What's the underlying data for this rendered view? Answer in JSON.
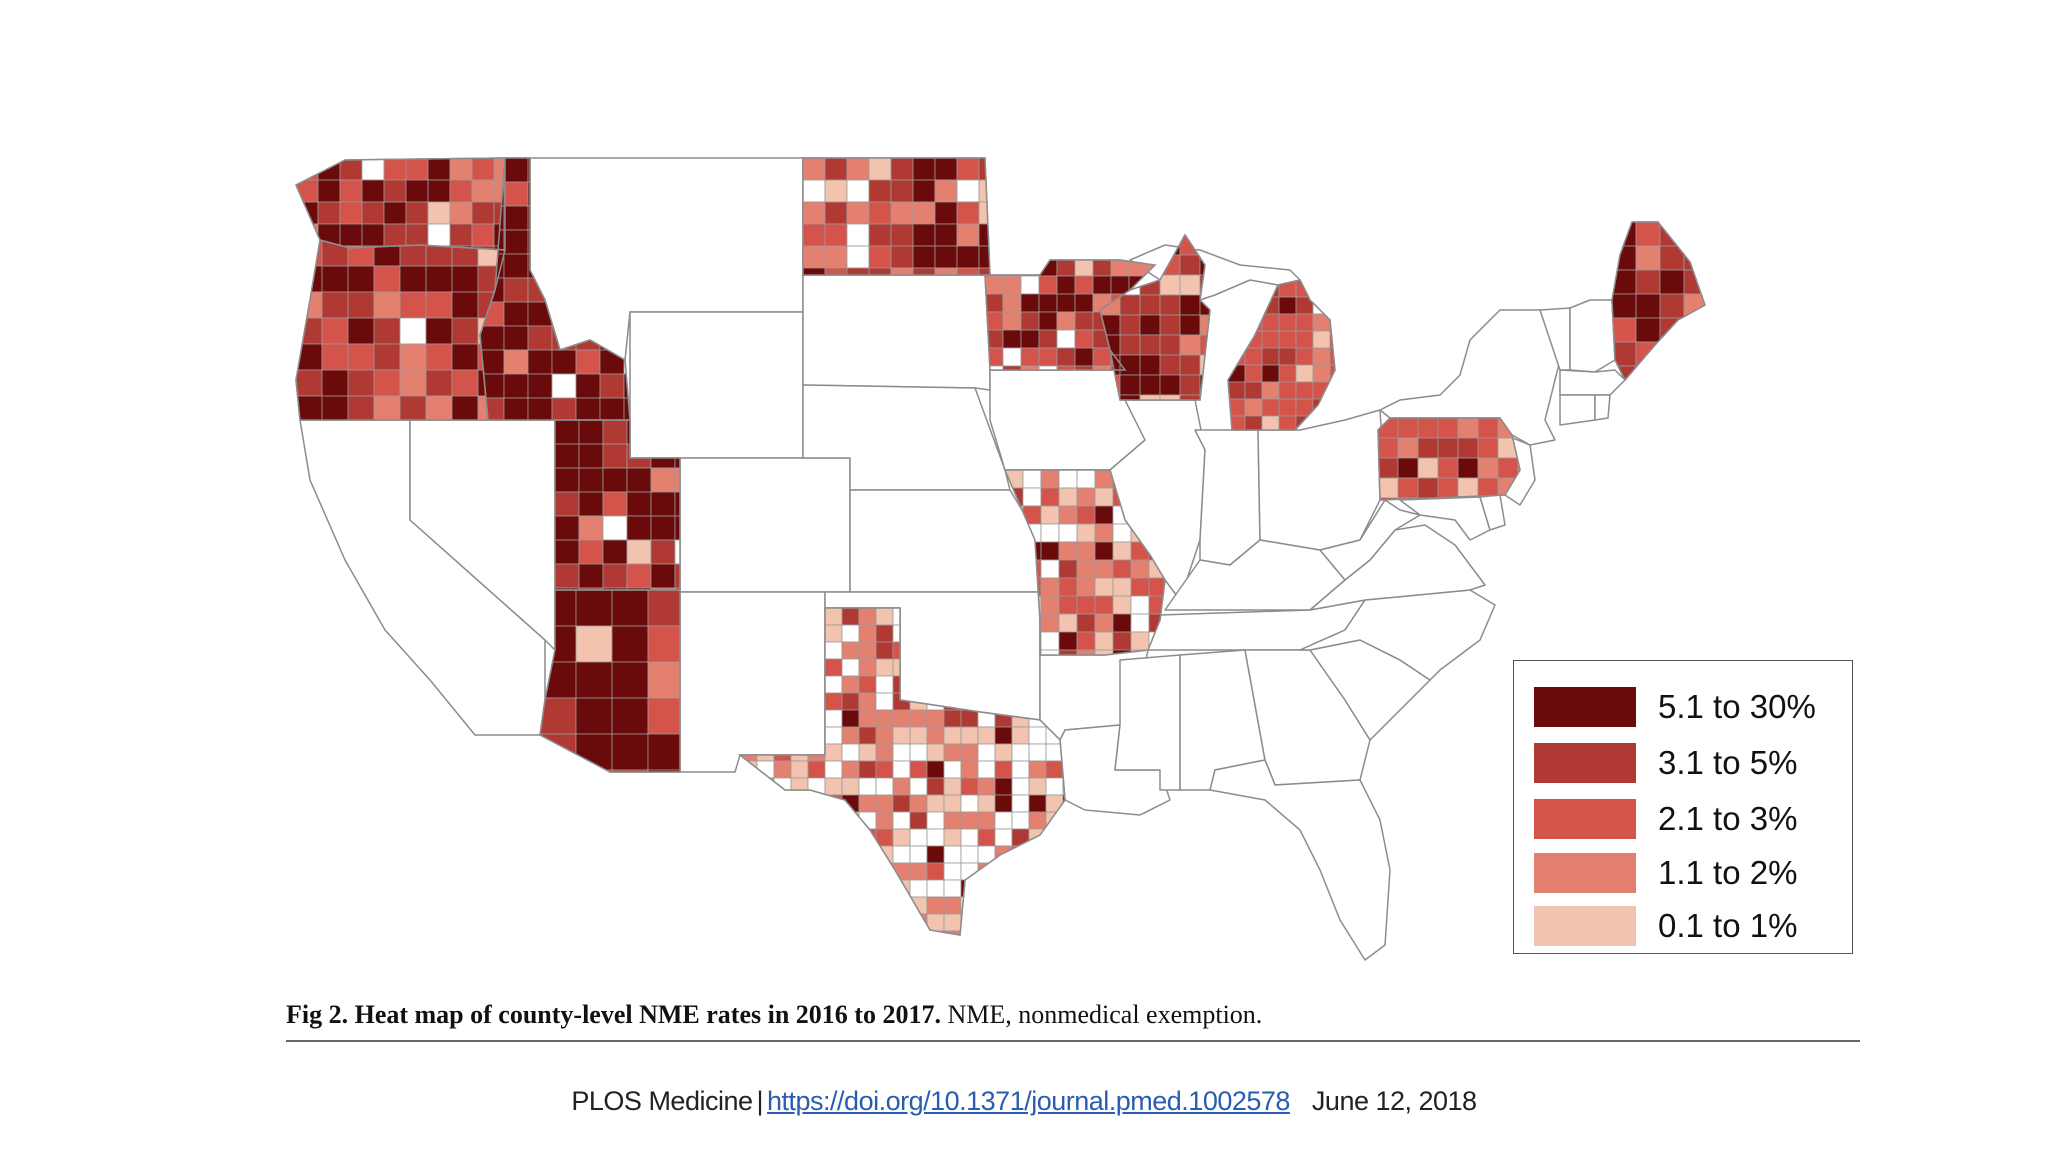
{
  "legend": {
    "items": [
      {
        "label": "5.1 to 30%",
        "color": "#6b0a0a"
      },
      {
        "label": "3.1 to 5%",
        "color": "#b03a33"
      },
      {
        "label": "2.1 to 3%",
        "color": "#d4544b"
      },
      {
        "label": "1.1 to 2%",
        "color": "#e48070"
      },
      {
        "label": "0.1 to 1%",
        "color": "#f2c4b0"
      }
    ]
  },
  "caption": {
    "title": "Fig 2. Heat map of county-level NME rates in 2016 to 2017.",
    "text": " NME, nonmedical exemption."
  },
  "footer": {
    "journal": "PLOS Medicine",
    "separator": "|",
    "doi": "https://doi.org/10.1371/journal.pmed.1002578",
    "date": "June 12, 2018"
  },
  "states_with_data": [
    "WA",
    "OR",
    "ID",
    "UT",
    "AZ",
    "TX",
    "MO",
    "MN",
    "ND",
    "WI",
    "MI",
    "PA",
    "ME"
  ]
}
